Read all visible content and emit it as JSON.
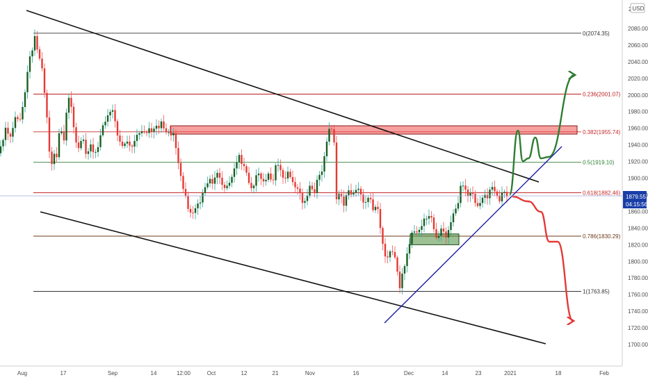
{
  "chart_data": {
    "type": "candlestick",
    "currency_label": "USD",
    "top_label": "2",
    "ylim": [
      1697,
      2092
    ],
    "y_ticks": [
      1700,
      1720,
      1740,
      1760,
      1780,
      1800,
      1820,
      1840,
      1860,
      1880,
      1900,
      1920,
      1940,
      1960,
      1980,
      2000,
      2020,
      2040,
      2060,
      2080
    ],
    "x_ticks": [
      "Aug",
      "17",
      "Sep",
      "14",
      "12:00",
      "Oct",
      "12",
      "21",
      "Nov",
      "16",
      "Dec",
      "14",
      "23",
      "2021",
      "18",
      "Feb"
    ],
    "current_price": "1879.55",
    "countdown": "04:15:56",
    "fib_levels": [
      {
        "label": "0(2074.35)",
        "value": 2074.35,
        "color": "#333333"
      },
      {
        "label": "0.236(2001.07)",
        "value": 2001.07,
        "color": "#b71c1c"
      },
      {
        "label": "0.382(1955.74)",
        "value": 1955.74,
        "color": "#c62828"
      },
      {
        "label": "0.5(1919.10)",
        "value": 1919.1,
        "color": "#2e7d32"
      },
      {
        "label": "0.618(1882.46)",
        "value": 1882.46,
        "color": "#c62828"
      },
      {
        "label": "0.786(1830.29)",
        "value": 1830.29,
        "color": "#6d3a1a"
      },
      {
        "label": "1(1763.85)",
        "value": 1763.85,
        "color": "#333333"
      }
    ],
    "price_path": [
      [
        0,
        1930
      ],
      [
        8,
        1962
      ],
      [
        16,
        1945
      ],
      [
        22,
        1978
      ],
      [
        28,
        1965
      ],
      [
        34,
        1990
      ],
      [
        40,
        2035
      ],
      [
        46,
        2050
      ],
      [
        50,
        2072
      ],
      [
        54,
        2055
      ],
      [
        58,
        2040
      ],
      [
        62,
        2020
      ],
      [
        66,
        1990
      ],
      [
        70,
        1950
      ],
      [
        73,
        1895
      ],
      [
        76,
        1935
      ],
      [
        80,
        1920
      ],
      [
        86,
        1960
      ],
      [
        92,
        1945
      ],
      [
        98,
        2005
      ],
      [
        102,
        1985
      ],
      [
        106,
        1960
      ],
      [
        112,
        1935
      ],
      [
        118,
        1948
      ],
      [
        124,
        1930
      ],
      [
        130,
        1940
      ],
      [
        136,
        1925
      ],
      [
        142,
        1945
      ],
      [
        148,
        1960
      ],
      [
        154,
        1975
      ],
      [
        160,
        1985
      ],
      [
        166,
        1965
      ],
      [
        172,
        1945
      ],
      [
        178,
        1935
      ],
      [
        184,
        1948
      ],
      [
        190,
        1935
      ],
      [
        196,
        1950
      ],
      [
        202,
        1960
      ],
      [
        208,
        1950
      ],
      [
        214,
        1962
      ],
      [
        220,
        1955
      ],
      [
        226,
        1962
      ],
      [
        232,
        1968
      ],
      [
        238,
        1952
      ],
      [
        244,
        1958
      ],
      [
        250,
        1950
      ],
      [
        255,
        1925
      ],
      [
        260,
        1905
      ],
      [
        264,
        1885
      ],
      [
        268,
        1870
      ],
      [
        272,
        1862
      ],
      [
        278,
        1858
      ],
      [
        284,
        1866
      ],
      [
        290,
        1880
      ],
      [
        296,
        1888
      ],
      [
        302,
        1900
      ],
      [
        308,
        1895
      ],
      [
        314,
        1908
      ],
      [
        320,
        1892
      ],
      [
        326,
        1885
      ],
      [
        332,
        1902
      ],
      [
        338,
        1912
      ],
      [
        344,
        1926
      ],
      [
        350,
        1918
      ],
      [
        356,
        1898
      ],
      [
        362,
        1888
      ],
      [
        368,
        1900
      ],
      [
        374,
        1905
      ],
      [
        380,
        1895
      ],
      [
        386,
        1902
      ],
      [
        392,
        1898
      ],
      [
        398,
        1918
      ],
      [
        404,
        1908
      ],
      [
        410,
        1900
      ],
      [
        416,
        1905
      ],
      [
        422,
        1895
      ],
      [
        428,
        1885
      ],
      [
        434,
        1875
      ],
      [
        440,
        1872
      ],
      [
        446,
        1890
      ],
      [
        452,
        1885
      ],
      [
        458,
        1900
      ],
      [
        464,
        1910
      ],
      [
        468,
        1940
      ],
      [
        472,
        1950
      ],
      [
        476,
        1962
      ],
      [
        480,
        1955
      ],
      [
        484,
        1875
      ],
      [
        488,
        1880
      ],
      [
        494,
        1870
      ],
      [
        500,
        1885
      ],
      [
        506,
        1878
      ],
      [
        512,
        1890
      ],
      [
        518,
        1880
      ],
      [
        524,
        1870
      ],
      [
        530,
        1878
      ],
      [
        536,
        1862
      ],
      [
        542,
        1872
      ],
      [
        546,
        1845
      ],
      [
        550,
        1820
      ],
      [
        554,
        1810
      ],
      [
        558,
        1805
      ],
      [
        564,
        1812
      ],
      [
        570,
        1802
      ],
      [
        575,
        1765
      ],
      [
        580,
        1790
      ],
      [
        586,
        1812
      ],
      [
        592,
        1830
      ],
      [
        598,
        1840
      ],
      [
        604,
        1835
      ],
      [
        610,
        1850
      ],
      [
        616,
        1858
      ],
      [
        622,
        1845
      ],
      [
        628,
        1828
      ],
      [
        634,
        1838
      ],
      [
        640,
        1830
      ],
      [
        646,
        1840
      ],
      [
        652,
        1855
      ],
      [
        658,
        1870
      ],
      [
        662,
        1888
      ],
      [
        668,
        1890
      ],
      [
        672,
        1880
      ],
      [
        676,
        1885
      ],
      [
        682,
        1872
      ],
      [
        688,
        1868
      ],
      [
        694,
        1875
      ],
      [
        700,
        1878
      ],
      [
        706,
        1890
      ],
      [
        712,
        1882
      ],
      [
        718,
        1876
      ],
      [
        724,
        1882
      ],
      [
        730,
        1879
      ]
    ],
    "trendlines": [
      [
        [
          38,
          15
        ],
        [
          775,
          262
        ]
      ],
      [
        [
          58,
          305
        ],
        [
          785,
          495
        ]
      ],
      [
        [
          553,
          465
        ],
        [
          808,
          211
        ]
      ]
    ],
    "resistance_zone": {
      "y_top": 1963,
      "y_bottom": 1953,
      "x0": 245,
      "x1": 830
    },
    "support_zone": {
      "y_top": 1833,
      "y_bottom": 1820,
      "x0": 590,
      "x1": 660
    },
    "bull_path": [
      [
        733,
        280
      ],
      [
        745,
        188
      ],
      [
        752,
        232
      ],
      [
        760,
        228
      ],
      [
        770,
        198
      ],
      [
        778,
        228
      ],
      [
        789,
        226
      ],
      [
        826,
        108
      ]
    ],
    "bear_path": [
      [
        737,
        283
      ],
      [
        760,
        290
      ],
      [
        778,
        305
      ],
      [
        790,
        348
      ],
      [
        802,
        348
      ],
      [
        824,
        462
      ]
    ]
  }
}
